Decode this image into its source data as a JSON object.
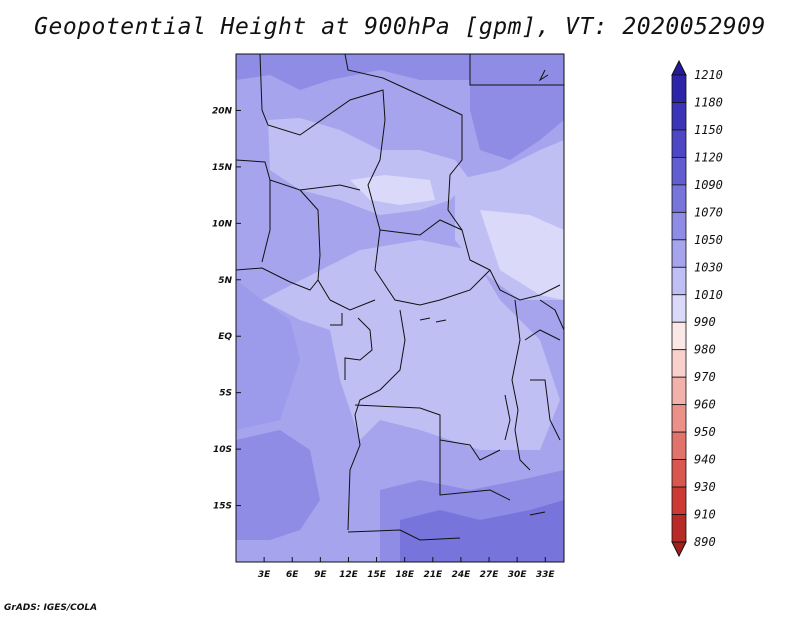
{
  "title": "Geopotential Height at 900hPa [gpm], VT: 2020052909",
  "credit": "GrADS: IGES/COLA",
  "map": {
    "lat_labels": [
      "20N",
      "15N",
      "10N",
      "5N",
      "EQ",
      "5S",
      "10S",
      "15S"
    ],
    "lat_values": [
      20,
      15,
      10,
      5,
      0,
      -5,
      -10,
      -15
    ],
    "lon_labels": [
      "3E",
      "6E",
      "9E",
      "12E",
      "15E",
      "18E",
      "21E",
      "24E",
      "27E",
      "30E",
      "33E"
    ],
    "lon_values": [
      3,
      6,
      9,
      12,
      15,
      18,
      21,
      24,
      27,
      30,
      33
    ],
    "lon_range": [
      0,
      35
    ],
    "lat_range": [
      -20,
      25
    ]
  },
  "colorbar": {
    "labels": [
      "1210",
      "1180",
      "1150",
      "1120",
      "1090",
      "1070",
      "1050",
      "1030",
      "1010",
      "990",
      "980",
      "970",
      "960",
      "950",
      "940",
      "930",
      "910",
      "890"
    ],
    "colors": [
      "#241a9c",
      "#2d24aa",
      "#3b33b8",
      "#4d47c6",
      "#625ed2",
      "#7774dc",
      "#8e8ce5",
      "#a6a4ed",
      "#c0bff4",
      "#dad9fa",
      "#fbe8e6",
      "#f8d0cc",
      "#f2b1ab",
      "#eb918a",
      "#e2736b",
      "#d9574f",
      "#cc3a33",
      "#b82a25",
      "#a41e1b"
    ]
  }
}
